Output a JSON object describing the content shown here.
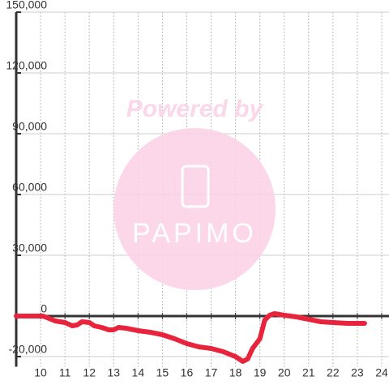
{
  "chart_data": {
    "type": "line",
    "watermark": {
      "text": "Powered by",
      "logo": "PAPIMO"
    },
    "x": [
      9.0,
      10.1,
      10.6,
      11.0,
      11.3,
      11.5,
      11.7,
      12.0,
      12.2,
      12.5,
      12.8,
      13.0,
      13.2,
      13.5,
      14.0,
      14.5,
      15.0,
      15.5,
      16.0,
      16.5,
      17.0,
      17.5,
      18.0,
      18.3,
      18.5,
      18.7,
      19.0,
      19.2,
      19.4,
      19.6,
      20.0,
      20.5,
      21.0,
      21.5,
      22.0,
      22.6,
      23.3
    ],
    "series": [
      {
        "color": "#e8243c",
        "values": [
          0,
          0,
          -2400,
          -3200,
          -4800,
          -4400,
          -2800,
          -3200,
          -4800,
          -5600,
          -6800,
          -6800,
          -5600,
          -6000,
          -7200,
          -8000,
          -9200,
          -11200,
          -13600,
          -15200,
          -16000,
          -17600,
          -20000,
          -22400,
          -21200,
          -16000,
          -11200,
          -2000,
          400,
          1200,
          400,
          -400,
          -1600,
          -2800,
          -3200,
          -3600,
          -3600
        ]
      }
    ],
    "xlim": [
      9,
      24.3
    ],
    "xticks": [
      10,
      11,
      12,
      13,
      14,
      15,
      16,
      17,
      18,
      19,
      20,
      21,
      22,
      23,
      24
    ],
    "ylim": [
      -25000,
      150000
    ],
    "yticks": [
      {
        "value": -20000,
        "label": "-20,000"
      },
      0,
      {
        "value": 30000,
        "label": "30,000"
      },
      {
        "value": 60000,
        "label": "60,000"
      },
      {
        "value": 90000,
        "label": "90,000"
      },
      {
        "value": 120000,
        "label": "120,000"
      },
      {
        "value": 150000,
        "label": "150,000"
      }
    ],
    "grid": true
  }
}
